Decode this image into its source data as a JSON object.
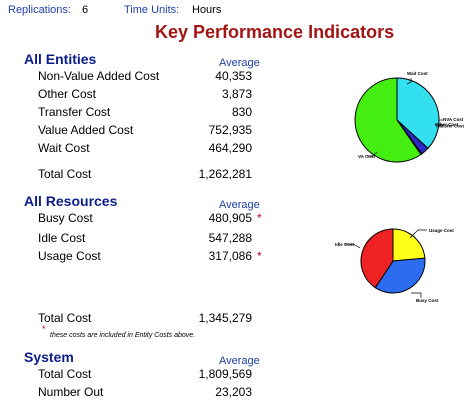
{
  "header": {
    "replications_label": "Replications:",
    "replications_value": "6",
    "time_units_label": "Time Units:",
    "time_units_value": "Hours"
  },
  "title": "Key Performance Indicators",
  "entities": {
    "heading": "All Entities",
    "column": "Average",
    "rows": [
      {
        "label": "Non-Value Added Cost",
        "value": "40,353"
      },
      {
        "label": "Other Cost",
        "value": "3,873"
      },
      {
        "label": "Transfer Cost",
        "value": "830"
      },
      {
        "label": "Value Added Cost",
        "value": "752,935"
      },
      {
        "label": "Wait Cost",
        "value": "464,290"
      }
    ],
    "total_label": "Total Cost",
    "total_value": "1,262,281"
  },
  "resources": {
    "heading": "All Resources",
    "column": "Average",
    "rows": [
      {
        "label": "Busy Cost",
        "value": "480,905",
        "star": "*"
      },
      {
        "label": "Idle Cost",
        "value": "547,288",
        "star": ""
      },
      {
        "label": "Usage Cost",
        "value": "317,086",
        "star": "*"
      }
    ],
    "total_label": "Total Cost",
    "total_value": "1,345,279",
    "footnote_star": "*",
    "footnote": "these costs are included in Entity Costs above."
  },
  "system": {
    "heading": "System",
    "column": "Average",
    "rows": [
      {
        "label": "Total Cost",
        "value": "1,809,569"
      },
      {
        "label": "Number Out",
        "value": "23,203"
      }
    ]
  },
  "chart_data": [
    {
      "type": "pie",
      "slices": [
        {
          "label": "Wait Cost",
          "value": 464290,
          "color": "#33e0f0"
        },
        {
          "label": "NVA Cost",
          "value": 40353,
          "color": "#2828c8"
        },
        {
          "label": "Other Cost",
          "value": 3873,
          "color": "#e8e8e8"
        },
        {
          "label": "Transfer Cost",
          "value": 830,
          "color": "#a0a0a0"
        },
        {
          "label": "VA Cost",
          "value": 752935,
          "color": "#44ee11"
        }
      ]
    },
    {
      "type": "pie",
      "slices": [
        {
          "label": "Usage Cost",
          "value": 317086,
          "color": "#ffff1a"
        },
        {
          "label": "Busy Cost",
          "value": 480905,
          "color": "#2c6cf0"
        },
        {
          "label": "Idle Cost",
          "value": 547288,
          "color": "#ee2222"
        }
      ]
    }
  ]
}
